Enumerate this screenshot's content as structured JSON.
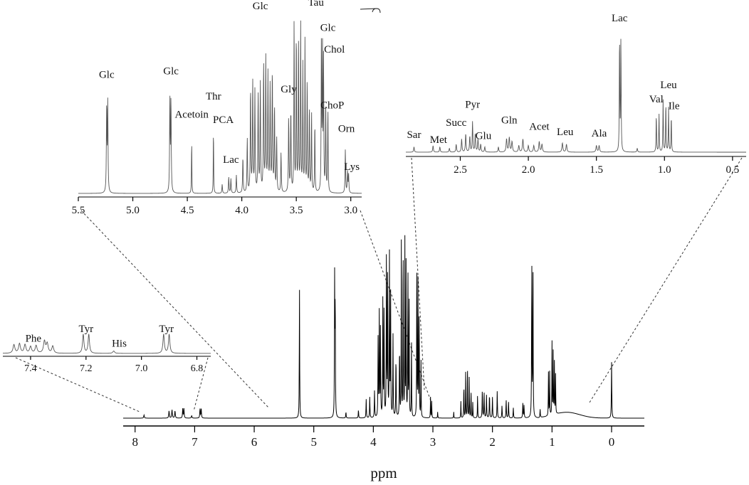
{
  "chart_data": [
    {
      "id": "main",
      "type": "line",
      "title": "",
      "xlabel": "ppm",
      "ylabel": "",
      "xlim": [
        8.2,
        -0.55
      ],
      "x_reversed": true,
      "xticks": [
        "8",
        "7",
        "6",
        "5",
        "4",
        "3",
        "2",
        "1",
        "0"
      ],
      "xtick_values": [
        8,
        7,
        6,
        5,
        4,
        3,
        2,
        1,
        0
      ],
      "ylim": [
        0,
        100
      ],
      "grid": false,
      "peaks": [
        {
          "ppm": 7.85,
          "h": 1.5,
          "w": 0.006
        },
        {
          "ppm": 7.43,
          "h": 3.5,
          "w": 0.006
        },
        {
          "ppm": 7.38,
          "h": 4,
          "w": 0.006
        },
        {
          "ppm": 7.33,
          "h": 3.5,
          "w": 0.006
        },
        {
          "ppm": 7.2,
          "h": 4.5,
          "w": 0.005
        },
        {
          "ppm": 7.18,
          "h": 4.5,
          "w": 0.005
        },
        {
          "ppm": 7.05,
          "h": 1.2,
          "w": 0.006
        },
        {
          "ppm": 6.91,
          "h": 4.5,
          "w": 0.005
        },
        {
          "ppm": 6.89,
          "h": 4.5,
          "w": 0.005
        },
        {
          "ppm": 5.24,
          "h": 63,
          "w": 0.0035
        },
        {
          "ppm": 4.65,
          "h": 66,
          "w": 0.0035
        },
        {
          "ppm": 4.64,
          "h": 60,
          "w": 0.0035
        },
        {
          "ppm": 4.46,
          "h": 3,
          "w": 0.004
        },
        {
          "ppm": 4.25,
          "h": 4,
          "w": 0.004
        },
        {
          "ppm": 4.12,
          "h": 9,
          "w": 0.004
        },
        {
          "ppm": 4.06,
          "h": 10,
          "w": 0.004
        },
        {
          "ppm": 3.98,
          "h": 13,
          "w": 0.004
        },
        {
          "ppm": 3.92,
          "h": 39,
          "w": 0.0035
        },
        {
          "ppm": 3.9,
          "h": 52,
          "w": 0.0035
        },
        {
          "ppm": 3.88,
          "h": 44,
          "w": 0.0035
        },
        {
          "ppm": 3.84,
          "h": 60,
          "w": 0.0035
        },
        {
          "ppm": 3.82,
          "h": 54,
          "w": 0.0035
        },
        {
          "ppm": 3.78,
          "h": 84,
          "w": 0.0035
        },
        {
          "ppm": 3.76,
          "h": 74,
          "w": 0.0035
        },
        {
          "ppm": 3.73,
          "h": 80,
          "w": 0.0035
        },
        {
          "ppm": 3.71,
          "h": 60,
          "w": 0.0035
        },
        {
          "ppm": 3.67,
          "h": 40,
          "w": 0.0035
        },
        {
          "ppm": 3.62,
          "h": 30,
          "w": 0.004
        },
        {
          "ppm": 3.56,
          "h": 35,
          "w": 0.004
        },
        {
          "ppm": 3.53,
          "h": 84,
          "w": 0.003
        },
        {
          "ppm": 3.5,
          "h": 98,
          "w": 0.003
        },
        {
          "ppm": 3.47,
          "h": 86,
          "w": 0.003
        },
        {
          "ppm": 3.45,
          "h": 75,
          "w": 0.003
        },
        {
          "ppm": 3.42,
          "h": 82,
          "w": 0.003
        },
        {
          "ppm": 3.4,
          "h": 66,
          "w": 0.003
        },
        {
          "ppm": 3.36,
          "h": 41,
          "w": 0.003
        },
        {
          "ppm": 3.27,
          "h": 78,
          "w": 0.003
        },
        {
          "ppm": 3.25,
          "h": 76,
          "w": 0.003
        },
        {
          "ppm": 3.23,
          "h": 55,
          "w": 0.003
        },
        {
          "ppm": 3.2,
          "h": 28,
          "w": 0.003
        },
        {
          "ppm": 3.04,
          "h": 10,
          "w": 0.003
        },
        {
          "ppm": 3.02,
          "h": 8,
          "w": 0.003
        },
        {
          "ppm": 2.92,
          "h": 3,
          "w": 0.003
        },
        {
          "ppm": 2.65,
          "h": 3,
          "w": 0.003
        },
        {
          "ppm": 2.53,
          "h": 8,
          "w": 0.003
        },
        {
          "ppm": 2.48,
          "h": 18,
          "w": 0.003
        },
        {
          "ppm": 2.45,
          "h": 22,
          "w": 0.003
        },
        {
          "ppm": 2.42,
          "h": 28,
          "w": 0.003
        },
        {
          "ppm": 2.39,
          "h": 20,
          "w": 0.003
        },
        {
          "ppm": 2.36,
          "h": 14,
          "w": 0.003
        },
        {
          "ppm": 2.33,
          "h": 8,
          "w": 0.003
        },
        {
          "ppm": 2.25,
          "h": 12,
          "w": 0.003
        },
        {
          "ppm": 2.17,
          "h": 14,
          "w": 0.004
        },
        {
          "ppm": 2.14,
          "h": 12,
          "w": 0.004
        },
        {
          "ppm": 2.1,
          "h": 11,
          "w": 0.004
        },
        {
          "ppm": 2.05,
          "h": 12,
          "w": 0.004
        },
        {
          "ppm": 2.0,
          "h": 10,
          "w": 0.004
        },
        {
          "ppm": 1.92,
          "h": 13,
          "w": 0.004
        },
        {
          "ppm": 1.84,
          "h": 6,
          "w": 0.004
        },
        {
          "ppm": 1.77,
          "h": 9,
          "w": 0.004
        },
        {
          "ppm": 1.73,
          "h": 8,
          "w": 0.004
        },
        {
          "ppm": 1.65,
          "h": 5,
          "w": 0.004
        },
        {
          "ppm": 1.49,
          "h": 7,
          "w": 0.004
        },
        {
          "ppm": 1.47,
          "h": 6,
          "w": 0.004
        },
        {
          "ppm": 1.34,
          "h": 81,
          "w": 0.0035
        },
        {
          "ppm": 1.32,
          "h": 77,
          "w": 0.0035
        },
        {
          "ppm": 1.2,
          "h": 4,
          "w": 0.004
        },
        {
          "ppm": 1.06,
          "h": 21,
          "w": 0.003
        },
        {
          "ppm": 1.04,
          "h": 21,
          "w": 0.003
        },
        {
          "ppm": 1.0,
          "h": 35,
          "w": 0.003
        },
        {
          "ppm": 0.98,
          "h": 30,
          "w": 0.003
        },
        {
          "ppm": 0.96,
          "h": 25,
          "w": 0.003
        },
        {
          "ppm": 0.94,
          "h": 19,
          "w": 0.003
        },
        {
          "ppm": 0.0,
          "h": 27,
          "w": 0.004
        }
      ]
    },
    {
      "id": "inset_aromatic",
      "type": "line",
      "xlim": [
        7.5,
        6.75
      ],
      "x_reversed": true,
      "xticks": [
        "7.4",
        "7.2",
        "7.0",
        "6.8"
      ],
      "xtick_values": [
        7.4,
        7.2,
        7.0,
        6.8
      ],
      "ylim": [
        0,
        100
      ],
      "peaks": [
        {
          "ppm": 7.46,
          "h": 18,
          "w": 0.004
        },
        {
          "ppm": 7.44,
          "h": 20,
          "w": 0.004
        },
        {
          "ppm": 7.42,
          "h": 18,
          "w": 0.004
        },
        {
          "ppm": 7.4,
          "h": 14,
          "w": 0.004
        },
        {
          "ppm": 7.38,
          "h": 16,
          "w": 0.004
        },
        {
          "ppm": 7.35,
          "h": 25,
          "w": 0.004
        },
        {
          "ppm": 7.34,
          "h": 20,
          "w": 0.004
        },
        {
          "ppm": 7.32,
          "h": 15,
          "w": 0.004
        },
        {
          "ppm": 7.21,
          "h": 40,
          "w": 0.003
        },
        {
          "ppm": 7.19,
          "h": 40,
          "w": 0.003
        },
        {
          "ppm": 7.1,
          "h": 5,
          "w": 0.004
        },
        {
          "ppm": 6.92,
          "h": 40,
          "w": 0.003
        },
        {
          "ppm": 6.9,
          "h": 40,
          "w": 0.003
        }
      ],
      "labels": [
        {
          "text": "Phe",
          "ppm": 7.39,
          "h": 25
        },
        {
          "text": "Tyr",
          "ppm": 7.2,
          "h": 45
        },
        {
          "text": "His",
          "ppm": 7.08,
          "h": 14
        },
        {
          "text": "Tyr",
          "ppm": 6.91,
          "h": 45
        }
      ]
    },
    {
      "id": "inset_mid",
      "type": "line",
      "xlim": [
        5.5,
        2.9
      ],
      "x_reversed": true,
      "xticks": [
        "5.5",
        "5.0",
        "4.5",
        "4.0",
        "3.5",
        "3.0"
      ],
      "xtick_values": [
        5.5,
        5.0,
        4.5,
        4.0,
        3.5,
        3.0
      ],
      "ylim": [
        0,
        100
      ],
      "peaks": [
        {
          "ppm": 5.24,
          "h": 49,
          "w": 0.003
        },
        {
          "ppm": 5.23,
          "h": 49,
          "w": 0.003
        },
        {
          "ppm": 4.66,
          "h": 51,
          "w": 0.003
        },
        {
          "ppm": 4.65,
          "h": 51,
          "w": 0.003
        },
        {
          "ppm": 4.46,
          "h": 31,
          "w": 0.002
        },
        {
          "ppm": 4.26,
          "h": 38,
          "w": 0.002
        },
        {
          "ppm": 4.18,
          "h": 5,
          "w": 0.003
        },
        {
          "ppm": 4.12,
          "h": 9,
          "w": 0.003
        },
        {
          "ppm": 4.1,
          "h": 8,
          "w": 0.003
        },
        {
          "ppm": 4.05,
          "h": 10,
          "w": 0.003
        },
        {
          "ppm": 3.99,
          "h": 20,
          "w": 0.003
        },
        {
          "ppm": 3.95,
          "h": 30,
          "w": 0.003
        },
        {
          "ppm": 3.92,
          "h": 58,
          "w": 0.003
        },
        {
          "ppm": 3.9,
          "h": 62,
          "w": 0.003
        },
        {
          "ppm": 3.88,
          "h": 56,
          "w": 0.003
        },
        {
          "ppm": 3.85,
          "h": 55,
          "w": 0.003
        },
        {
          "ppm": 3.83,
          "h": 60,
          "w": 0.003
        },
        {
          "ppm": 3.8,
          "h": 72,
          "w": 0.003
        },
        {
          "ppm": 3.78,
          "h": 74,
          "w": 0.003
        },
        {
          "ppm": 3.76,
          "h": 65,
          "w": 0.003
        },
        {
          "ppm": 3.74,
          "h": 60,
          "w": 0.003
        },
        {
          "ppm": 3.72,
          "h": 68,
          "w": 0.003
        },
        {
          "ppm": 3.7,
          "h": 48,
          "w": 0.003
        },
        {
          "ppm": 3.68,
          "h": 30,
          "w": 0.003
        },
        {
          "ppm": 3.64,
          "h": 22,
          "w": 0.003
        },
        {
          "ppm": 3.57,
          "h": 42,
          "w": 0.003
        },
        {
          "ppm": 3.55,
          "h": 46,
          "w": 0.003
        },
        {
          "ppm": 3.52,
          "h": 98,
          "w": 0.0025
        },
        {
          "ppm": 3.5,
          "h": 92,
          "w": 0.0025
        },
        {
          "ppm": 3.48,
          "h": 88,
          "w": 0.0025
        },
        {
          "ppm": 3.46,
          "h": 94,
          "w": 0.0025
        },
        {
          "ppm": 3.44,
          "h": 70,
          "w": 0.0025
        },
        {
          "ppm": 3.42,
          "h": 86,
          "w": 0.0025
        },
        {
          "ppm": 3.4,
          "h": 65,
          "w": 0.0025
        },
        {
          "ppm": 3.38,
          "h": 50,
          "w": 0.0025
        },
        {
          "ppm": 3.36,
          "h": 45,
          "w": 0.0025
        },
        {
          "ppm": 3.33,
          "h": 40,
          "w": 0.0025
        },
        {
          "ppm": 3.27,
          "h": 80,
          "w": 0.0025
        },
        {
          "ppm": 3.26,
          "h": 82,
          "w": 0.0025
        },
        {
          "ppm": 3.25,
          "h": 75,
          "w": 0.0025
        },
        {
          "ppm": 3.23,
          "h": 52,
          "w": 0.0025
        },
        {
          "ppm": 3.21,
          "h": 48,
          "w": 0.0025
        },
        {
          "ppm": 3.05,
          "h": 24,
          "w": 0.003
        },
        {
          "ppm": 3.03,
          "h": 12,
          "w": 0.003
        },
        {
          "ppm": 3.02,
          "h": 10,
          "w": 0.003
        }
      ],
      "labels": [
        {
          "text": "Glc",
          "ppm": 5.24,
          "h": 64
        },
        {
          "text": "Glc",
          "ppm": 4.65,
          "h": 66
        },
        {
          "text": "Acetoin",
          "ppm": 4.46,
          "h": 42
        },
        {
          "text": "Thr",
          "ppm": 4.26,
          "h": 52
        },
        {
          "text": "PCA",
          "ppm": 4.17,
          "h": 39
        },
        {
          "text": "Lac",
          "ppm": 4.1,
          "h": 17
        },
        {
          "text": "Glc",
          "ppm": 3.83,
          "h": 102
        },
        {
          "text": "Gly",
          "ppm": 3.57,
          "h": 56
        },
        {
          "text": "Glc",
          "ppm": 3.52,
          "h": 121
        },
        {
          "text": "MeOH",
          "ppm": 3.36,
          "h": 116
        },
        {
          "text": "Tau",
          "ppm": 3.32,
          "h": 104
        },
        {
          "text": "Glc",
          "ppm": 3.21,
          "h": 90
        },
        {
          "text": "Chol",
          "ppm": 3.15,
          "h": 78
        },
        {
          "text": "ChoP",
          "ppm": 3.17,
          "h": 47
        },
        {
          "text": "Orn",
          "ppm": 3.04,
          "h": 34
        },
        {
          "text": "Lys",
          "ppm": 2.99,
          "h": 13
        }
      ]
    },
    {
      "id": "inset_aliphatic",
      "type": "line",
      "xlim": [
        2.9,
        0.4
      ],
      "x_reversed": true,
      "xticks": [
        "2.5",
        "2.0",
        "1.5",
        "1.0",
        "0.5"
      ],
      "xtick_values": [
        2.5,
        2.0,
        1.5,
        1.0,
        0.5
      ],
      "ylim": [
        0,
        100
      ],
      "peaks": [
        {
          "ppm": 2.84,
          "h": 4,
          "w": 0.003
        },
        {
          "ppm": 2.7,
          "h": 5,
          "w": 0.003
        },
        {
          "ppm": 2.65,
          "h": 4,
          "w": 0.003
        },
        {
          "ppm": 2.58,
          "h": 3,
          "w": 0.003
        },
        {
          "ppm": 2.53,
          "h": 6,
          "w": 0.003
        },
        {
          "ppm": 2.49,
          "h": 10,
          "w": 0.003
        },
        {
          "ppm": 2.46,
          "h": 14,
          "w": 0.003
        },
        {
          "ppm": 2.43,
          "h": 12,
          "w": 0.003
        },
        {
          "ppm": 2.41,
          "h": 23,
          "w": 0.0025
        },
        {
          "ppm": 2.39,
          "h": 14,
          "w": 0.003
        },
        {
          "ppm": 2.37,
          "h": 10,
          "w": 0.003
        },
        {
          "ppm": 2.35,
          "h": 6,
          "w": 0.003
        },
        {
          "ppm": 2.32,
          "h": 4,
          "w": 0.003
        },
        {
          "ppm": 2.22,
          "h": 4,
          "w": 0.003
        },
        {
          "ppm": 2.16,
          "h": 10,
          "w": 0.004
        },
        {
          "ppm": 2.14,
          "h": 11,
          "w": 0.004
        },
        {
          "ppm": 2.12,
          "h": 8,
          "w": 0.004
        },
        {
          "ppm": 2.07,
          "h": 5,
          "w": 0.004
        },
        {
          "ppm": 2.04,
          "h": 10,
          "w": 0.004
        },
        {
          "ppm": 2.0,
          "h": 5,
          "w": 0.004
        },
        {
          "ppm": 1.96,
          "h": 5,
          "w": 0.004
        },
        {
          "ppm": 1.92,
          "h": 8,
          "w": 0.004
        },
        {
          "ppm": 1.9,
          "h": 6,
          "w": 0.004
        },
        {
          "ppm": 1.75,
          "h": 7,
          "w": 0.004
        },
        {
          "ppm": 1.72,
          "h": 6,
          "w": 0.004
        },
        {
          "ppm": 1.5,
          "h": 5,
          "w": 0.004
        },
        {
          "ppm": 1.48,
          "h": 5,
          "w": 0.004
        },
        {
          "ppm": 1.33,
          "h": 90,
          "w": 0.002
        },
        {
          "ppm": 1.32,
          "h": 88,
          "w": 0.002
        },
        {
          "ppm": 1.2,
          "h": 3,
          "w": 0.003
        },
        {
          "ppm": 1.06,
          "h": 29,
          "w": 0.002
        },
        {
          "ppm": 1.04,
          "h": 29,
          "w": 0.002
        },
        {
          "ppm": 1.01,
          "h": 40,
          "w": 0.002
        },
        {
          "ppm": 0.99,
          "h": 38,
          "w": 0.002
        },
        {
          "ppm": 0.97,
          "h": 34,
          "w": 0.002
        },
        {
          "ppm": 0.95,
          "h": 28,
          "w": 0.002
        }
      ],
      "labels": [
        {
          "text": "Sar",
          "ppm": 2.84,
          "h": 11
        },
        {
          "text": "Met",
          "ppm": 2.66,
          "h": 7
        },
        {
          "text": "Succ",
          "ppm": 2.53,
          "h": 20
        },
        {
          "text": "Pyr",
          "ppm": 2.41,
          "h": 34
        },
        {
          "text": "Glu",
          "ppm": 2.33,
          "h": 10
        },
        {
          "text": "Gln",
          "ppm": 2.14,
          "h": 22
        },
        {
          "text": "Acet",
          "ppm": 1.92,
          "h": 17
        },
        {
          "text": "Leu",
          "ppm": 1.73,
          "h": 13
        },
        {
          "text": "Ala",
          "ppm": 1.48,
          "h": 12
        },
        {
          "text": "Lac",
          "ppm": 1.33,
          "h": 100
        },
        {
          "text": "Val",
          "ppm": 1.06,
          "h": 38
        },
        {
          "text": "Leu",
          "ppm": 0.97,
          "h": 49
        },
        {
          "text": "Ile",
          "ppm": 0.93,
          "h": 33
        }
      ]
    }
  ]
}
